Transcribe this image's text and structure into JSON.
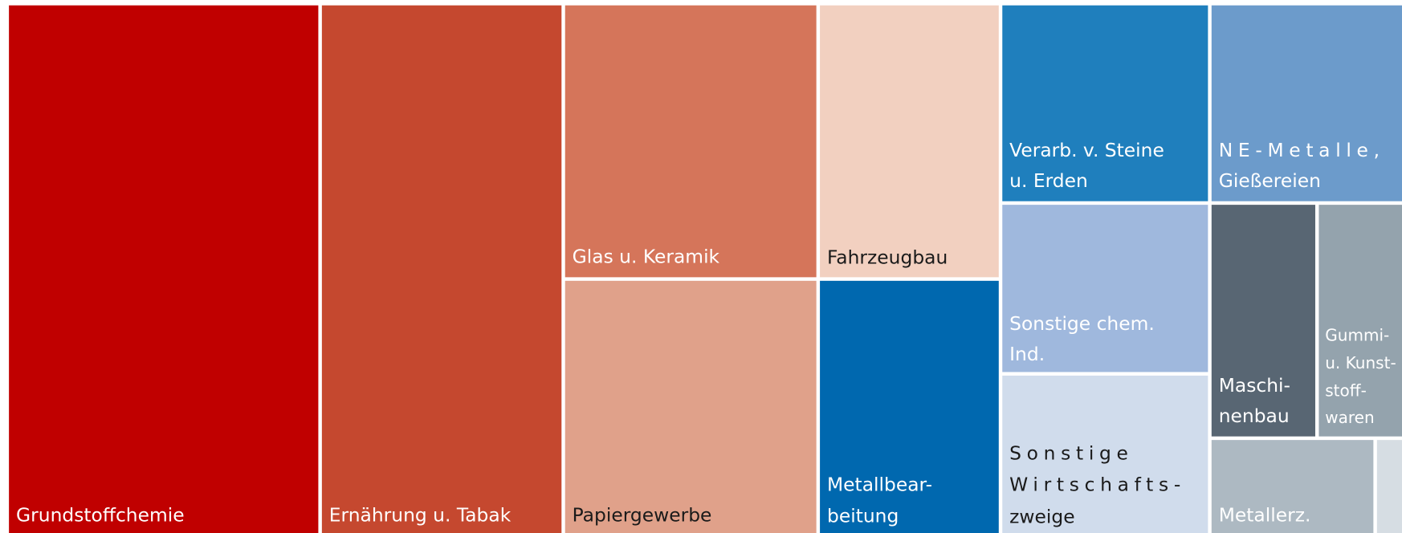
{
  "tiles": [
    {
      "lines": [
        "Grundstoffchemie"
      ]
    },
    {
      "lines": [
        "Ernährung u. Tabak"
      ]
    },
    {
      "lines": [
        "Glas u. Keramik"
      ]
    },
    {
      "lines": [
        "Papiergewerbe"
      ]
    },
    {
      "lines": [
        "Fahrzeugbau"
      ]
    },
    {
      "lines": [
        "Metallbear-",
        "beitung"
      ]
    },
    {
      "lines": [
        "Verarb. v. Steine",
        "u. Erden"
      ]
    },
    {
      "lines": [
        "NE-Metalle,",
        "Gießereien"
      ]
    },
    {
      "lines": [
        "Sonstige chem.",
        "Ind."
      ]
    },
    {
      "lines": [
        "Sonstige",
        "Wirtschafts-",
        "zweige"
      ]
    },
    {
      "lines": [
        "Maschi-",
        "nenbau"
      ]
    },
    {
      "lines": [
        "Gummi-",
        "u. Kunst-",
        "stoff-",
        "waren"
      ]
    },
    {
      "lines": [
        "Metallerz."
      ]
    }
  ]
}
